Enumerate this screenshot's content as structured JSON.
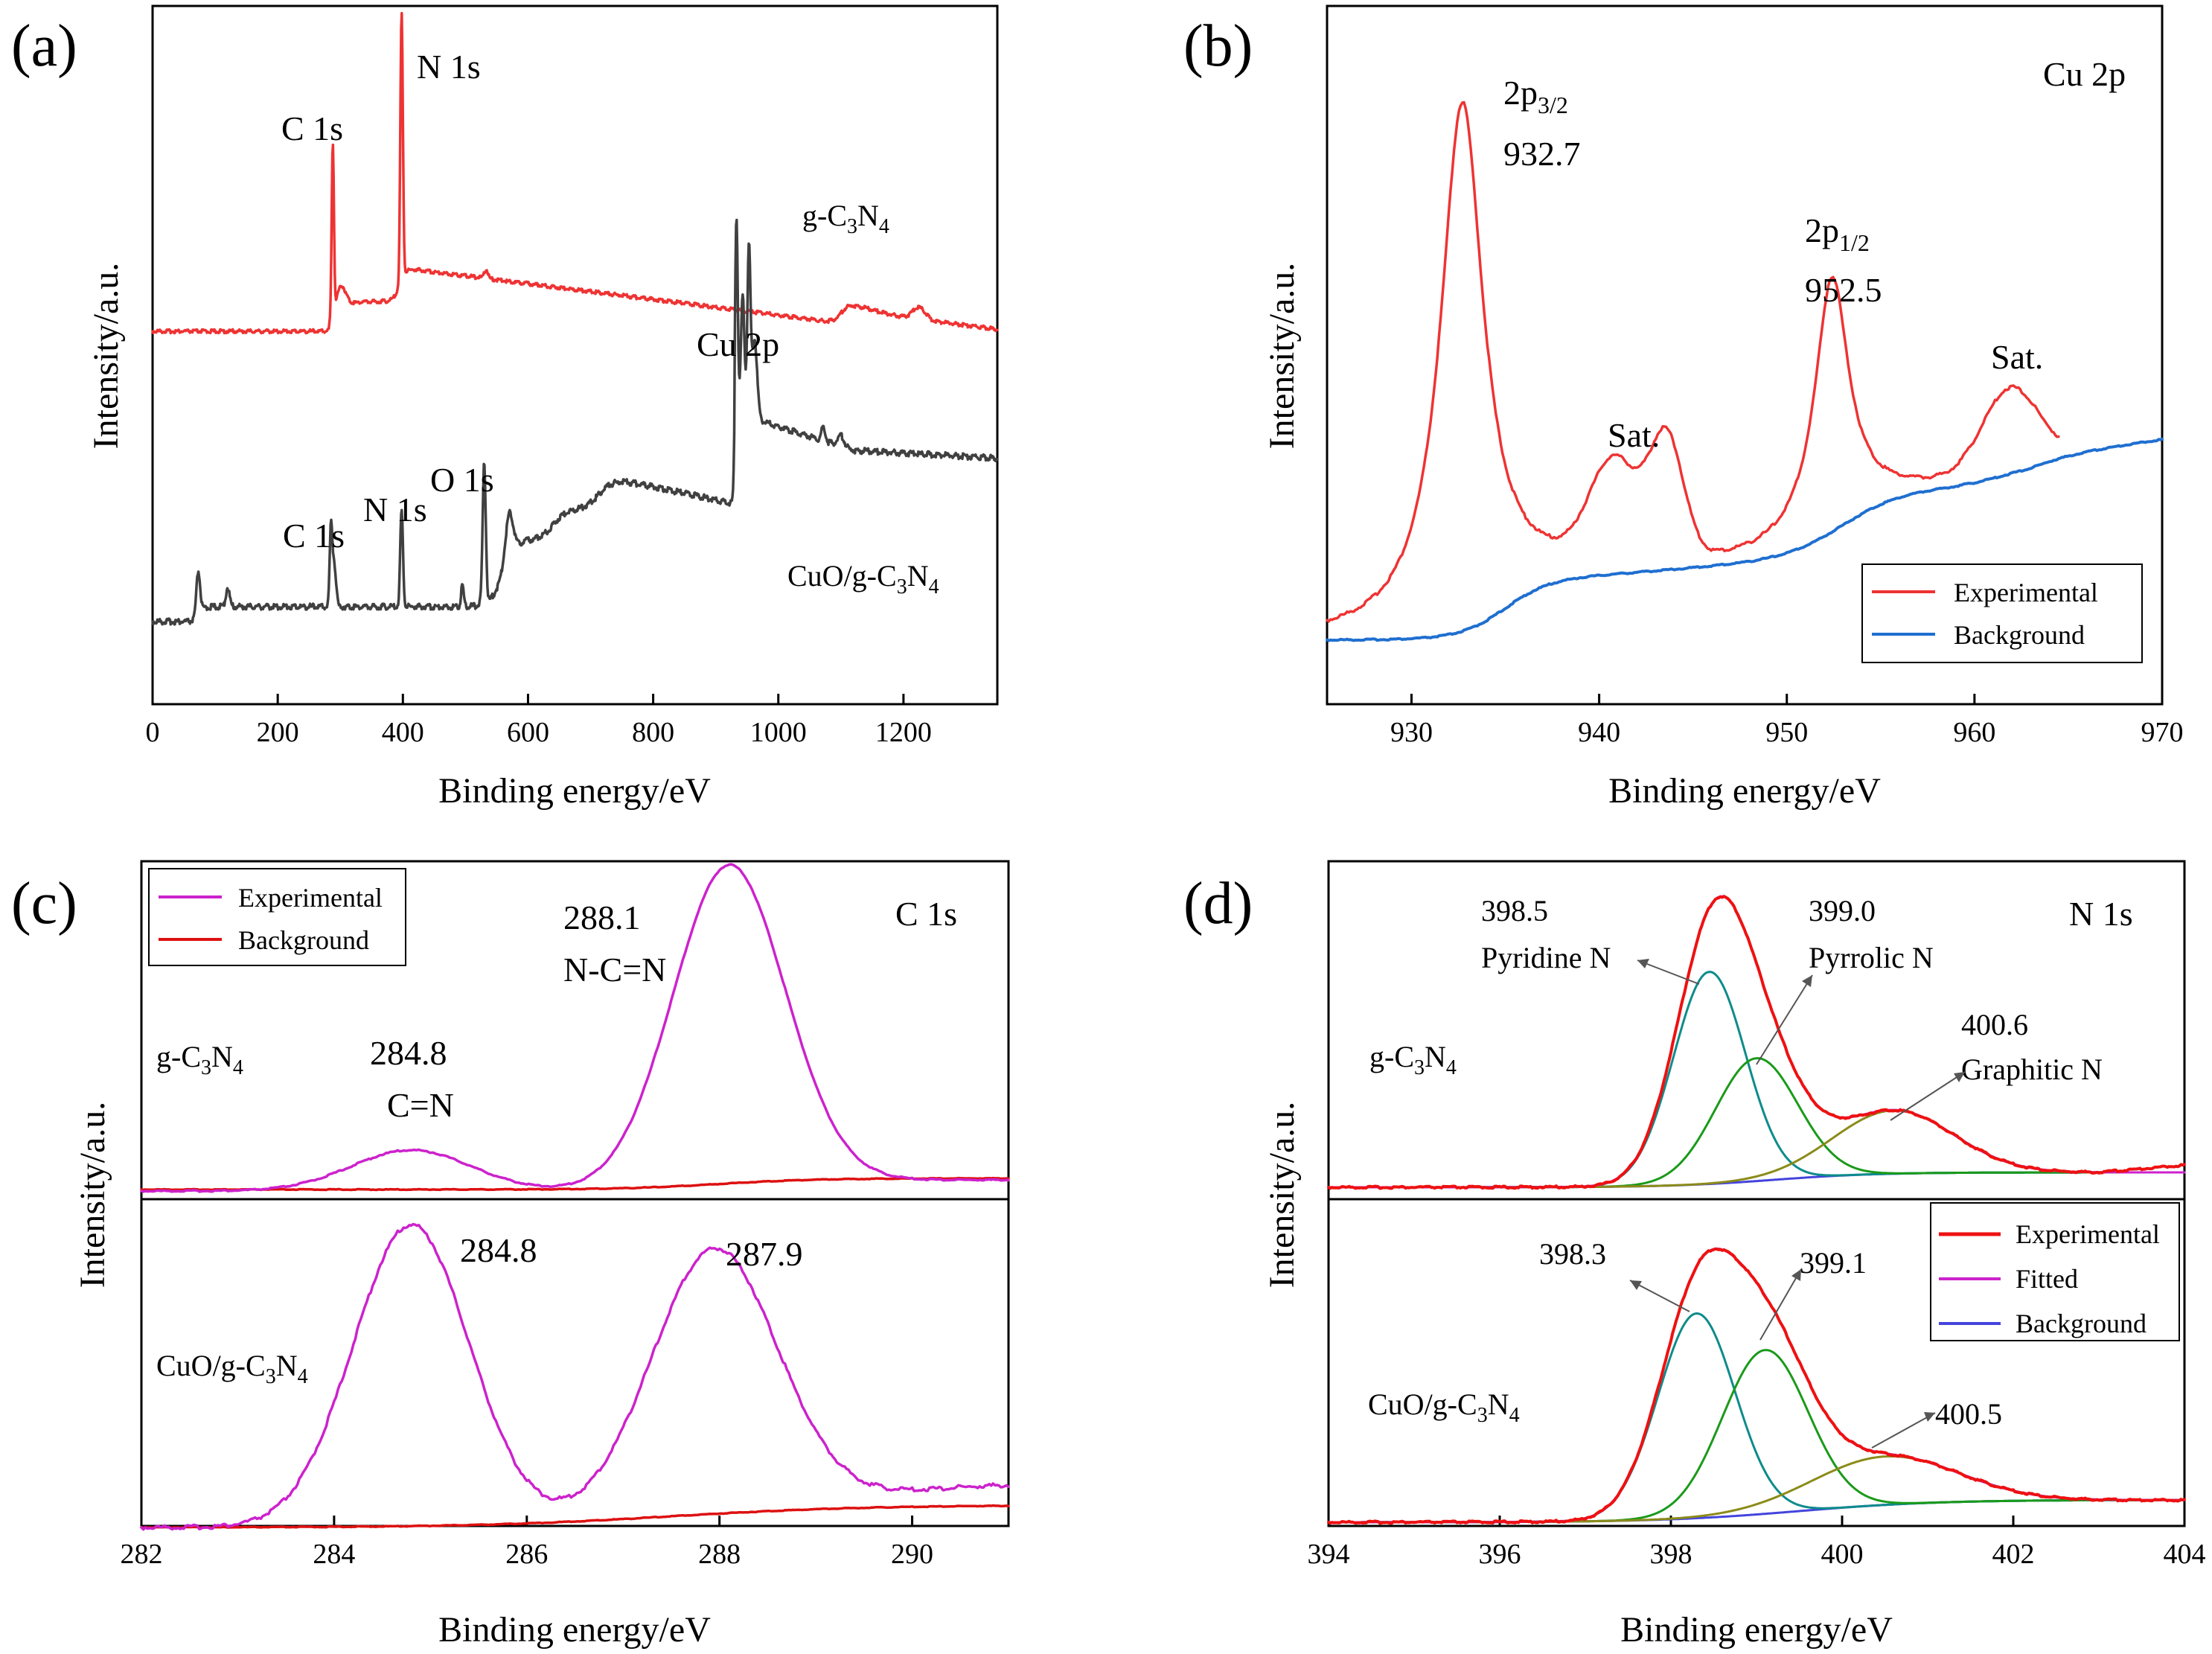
{
  "chart_data": [
    {
      "panel": "(a)",
      "type": "line",
      "xlabel": "Binding energy/eV",
      "ylabel": "Intensity/a.u.",
      "xlim": [
        0,
        1350
      ],
      "xticks": [
        0,
        200,
        400,
        600,
        800,
        1000,
        1200
      ],
      "series": [
        {
          "name": "g-C3N4",
          "color": "#ee3333",
          "peaks": [
            {
              "x": 288,
              "label": "C 1s"
            },
            {
              "x": 398,
              "label": "N 1s"
            }
          ]
        },
        {
          "name": "CuO/g-C3N4",
          "color": "#404040",
          "peaks": [
            {
              "x": 285,
              "label": "C 1s"
            },
            {
              "x": 398,
              "label": "N 1s"
            },
            {
              "x": 530,
              "label": "O 1s"
            },
            {
              "x": 933,
              "label": "Cu 2p"
            }
          ]
        }
      ]
    },
    {
      "panel": "(b)",
      "type": "line",
      "title": "Cu 2p",
      "xlabel": "Binding energy/eV",
      "ylabel": "Intensity/a.u.",
      "xlim": [
        925.5,
        970
      ],
      "xticks": [
        930,
        940,
        950,
        960,
        970
      ],
      "legend": [
        "Experimental",
        "Background"
      ],
      "series": [
        {
          "name": "Experimental",
          "color": "#ee3333"
        },
        {
          "name": "Background",
          "color": "#1f6fd0"
        }
      ],
      "annotations": [
        {
          "x": 932.7,
          "label": "2p3/2",
          "value": "932.7"
        },
        {
          "x": 941.5,
          "label": "Sat."
        },
        {
          "x": 952.5,
          "label": "2p1/2",
          "value": "952.5"
        },
        {
          "x": 962,
          "label": "Sat."
        }
      ]
    },
    {
      "panel": "(c)",
      "type": "line",
      "title": "C 1s",
      "xlabel": "Binding energy/eV",
      "ylabel": "Intensity/a.u.",
      "xlim": [
        282,
        291
      ],
      "xticks": [
        282,
        284,
        286,
        288,
        290
      ],
      "legend": [
        "Experimental",
        "Background"
      ],
      "series": [
        {
          "name": "Experimental",
          "color": "#cc22cc"
        },
        {
          "name": "Background",
          "color": "#dd1111"
        }
      ],
      "subplots": [
        {
          "sample": "g-C3N4",
          "peaks": [
            {
              "x": 284.8,
              "label": "C=N"
            },
            {
              "x": 288.1,
              "label": "N-C=N"
            }
          ]
        },
        {
          "sample": "CuO/g-C3N4",
          "peaks": [
            {
              "x": 284.8
            },
            {
              "x": 287.9
            }
          ]
        }
      ]
    },
    {
      "panel": "(d)",
      "type": "line",
      "title": "N 1s",
      "xlabel": "Binding energy/eV",
      "ylabel": "Intensity/a.u.",
      "xlim": [
        394,
        404
      ],
      "xticks": [
        394,
        396,
        398,
        400,
        402,
        404
      ],
      "legend": [
        "Experimental",
        "Fitted",
        "Background"
      ],
      "series": [
        {
          "name": "Experimental",
          "color": "#ee1111"
        },
        {
          "name": "Fitted",
          "color": "#cc22cc"
        },
        {
          "name": "Background",
          "color": "#4444dd"
        }
      ],
      "subplots": [
        {
          "sample": "g-C3N4",
          "peaks": [
            {
              "x": 398.5,
              "label": "Pyridine N"
            },
            {
              "x": 399.0,
              "label": "Pyrrolic N"
            },
            {
              "x": 400.6,
              "label": "Graphitic N"
            }
          ]
        },
        {
          "sample": "CuO/g-C3N4",
          "peaks": [
            {
              "x": 398.3
            },
            {
              "x": 399.1
            },
            {
              "x": 400.5
            }
          ]
        }
      ]
    }
  ],
  "labels": {
    "a": {
      "letter": "(a)",
      "gcn": "g-C",
      "gcn_3": "3",
      "gcn_n": "N",
      "gcn_4": "4",
      "c1s_top": "C 1s",
      "n1s_top": "N 1s",
      "cu2p": "Cu 2p",
      "o1s": "O 1s",
      "n1s_bot": "N 1s",
      "c1s_bot": "C 1s",
      "cuo": "CuO/g-C",
      "cuo_3": "3",
      "cuo_n": "N",
      "cuo_4": "4"
    },
    "b": {
      "letter": "(b)",
      "title": "Cu 2p",
      "p32": "2p",
      "p32_sub": "3/2",
      "p32_val": "932.7",
      "p12": "2p",
      "p12_sub": "1/2",
      "p12_val": "952.5",
      "sat1": "Sat.",
      "sat2": "Sat."
    },
    "c": {
      "letter": "(c)",
      "title": "C 1s",
      "v1": "288.1",
      "v1b": "N-C=N",
      "v2": "284.8",
      "v2b": "C=N",
      "gcn": "g-C",
      "gcn_3": "3",
      "gcn_n": "N",
      "gcn_4": "4",
      "v3": "284.8",
      "v4": "287.9",
      "cuo": "CuO/g-C",
      "cuo_3": "3",
      "cuo_n": "N",
      "cuo_4": "4"
    },
    "d": {
      "letter": "(d)",
      "title": "N 1s",
      "v1": "398.5",
      "v1b": "Pyridine N",
      "v2": "399.0",
      "v2b": "Pyrrolic N",
      "v3": "400.6",
      "v3b": "Graphitic N",
      "gcn": "g-C",
      "gcn_3": "3",
      "gcn_n": "N",
      "gcn_4": "4",
      "v4": "398.3",
      "v5": "399.1",
      "v6": "400.5",
      "cuo": "CuO/g-C",
      "cuo_3": "3",
      "cuo_n": "N",
      "cuo_4": "4"
    }
  }
}
